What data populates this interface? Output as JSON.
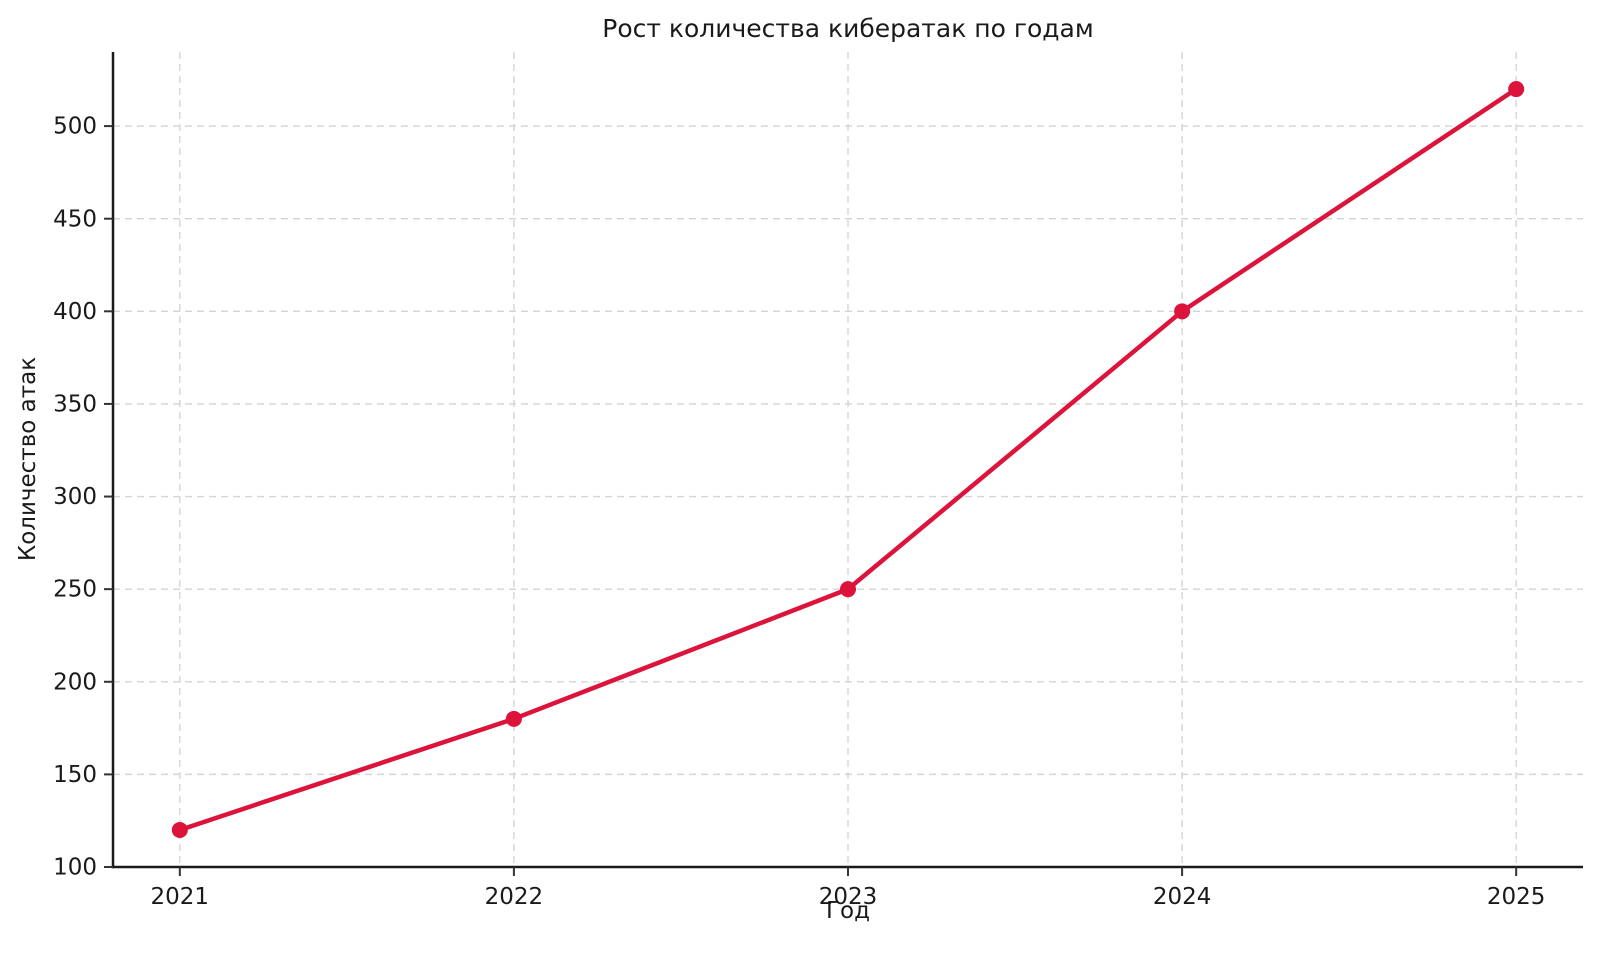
{
  "chart_data": {
    "type": "line",
    "title": "Рост количества кибератак по годам",
    "xlabel": "Год",
    "ylabel": "Количество атак",
    "x": [
      2021,
      2022,
      2023,
      2024,
      2025
    ],
    "series": [
      {
        "name": "Количество атак",
        "values": [
          120,
          180,
          250,
          400,
          520
        ]
      }
    ],
    "xticks": [
      2021,
      2022,
      2023,
      2024,
      2025
    ],
    "yticks": [
      100,
      150,
      200,
      250,
      300,
      350,
      400,
      450,
      500
    ],
    "xlim": [
      2020.8,
      2025.2
    ],
    "ylim": [
      100,
      540
    ],
    "grid": "dashed",
    "legend": "none",
    "colors": {
      "line": "#DC143C",
      "marker": "#DC143C",
      "grid": "#d4d4d4",
      "spine": "#1a1a1a",
      "tick": "#333333",
      "background": "#ffffff"
    }
  }
}
